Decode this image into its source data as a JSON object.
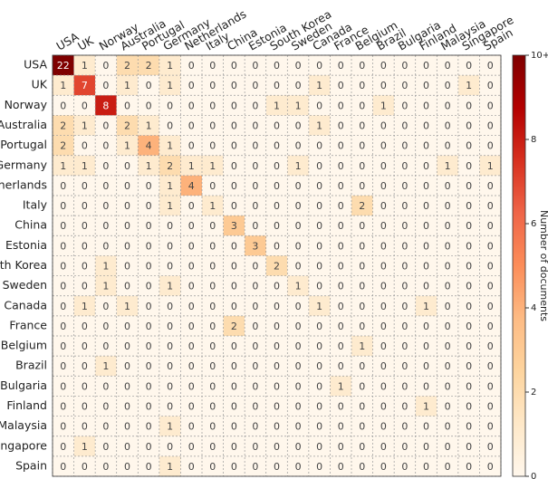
{
  "chart_data": {
    "type": "heatmap",
    "x_categories": [
      "USA",
      "UK",
      "Norway",
      "Australia",
      "Portugal",
      "Germany",
      "Netherlands",
      "Italy",
      "China",
      "Estonia",
      "South Korea",
      "Sweden",
      "Canada",
      "France",
      "Belgium",
      "Brazil",
      "Bulgaria",
      "Finland",
      "Malaysia",
      "Singapore",
      "Spain"
    ],
    "y_categories": [
      "USA",
      "UK",
      "Norway",
      "Australia",
      "Portugal",
      "Germany",
      "Netherlands",
      "Italy",
      "China",
      "Estonia",
      "South Korea",
      "Sweden",
      "Canada",
      "France",
      "Belgium",
      "Brazil",
      "Bulgaria",
      "Finland",
      "Malaysia",
      "Singapore",
      "Spain"
    ],
    "values": [
      [
        22,
        1,
        0,
        2,
        2,
        1,
        0,
        0,
        0,
        0,
        0,
        0,
        0,
        0,
        0,
        0,
        0,
        0,
        0,
        0,
        0
      ],
      [
        1,
        7,
        0,
        1,
        0,
        1,
        0,
        0,
        0,
        0,
        0,
        0,
        1,
        0,
        0,
        0,
        0,
        0,
        0,
        1,
        0
      ],
      [
        0,
        0,
        8,
        0,
        0,
        0,
        0,
        0,
        0,
        0,
        1,
        1,
        0,
        0,
        0,
        1,
        0,
        0,
        0,
        0,
        0
      ],
      [
        2,
        1,
        0,
        2,
        1,
        0,
        0,
        0,
        0,
        0,
        0,
        0,
        1,
        0,
        0,
        0,
        0,
        0,
        0,
        0,
        0
      ],
      [
        2,
        0,
        0,
        1,
        4,
        1,
        0,
        0,
        0,
        0,
        0,
        0,
        0,
        0,
        0,
        0,
        0,
        0,
        0,
        0,
        0
      ],
      [
        1,
        1,
        0,
        0,
        1,
        2,
        1,
        1,
        0,
        0,
        0,
        1,
        0,
        0,
        0,
        0,
        0,
        0,
        1,
        0,
        1
      ],
      [
        0,
        0,
        0,
        0,
        0,
        1,
        4,
        0,
        0,
        0,
        0,
        0,
        0,
        0,
        0,
        0,
        0,
        0,
        0,
        0,
        0
      ],
      [
        0,
        0,
        0,
        0,
        0,
        1,
        0,
        1,
        0,
        0,
        0,
        0,
        0,
        0,
        2,
        0,
        0,
        0,
        0,
        0,
        0
      ],
      [
        0,
        0,
        0,
        0,
        0,
        0,
        0,
        0,
        3,
        0,
        0,
        0,
        0,
        0,
        0,
        0,
        0,
        0,
        0,
        0,
        0
      ],
      [
        0,
        0,
        0,
        0,
        0,
        0,
        0,
        0,
        0,
        3,
        0,
        0,
        0,
        0,
        0,
        0,
        0,
        0,
        0,
        0,
        0
      ],
      [
        0,
        0,
        1,
        0,
        0,
        0,
        0,
        0,
        0,
        0,
        2,
        0,
        0,
        0,
        0,
        0,
        0,
        0,
        0,
        0,
        0
      ],
      [
        0,
        0,
        1,
        0,
        0,
        1,
        0,
        0,
        0,
        0,
        0,
        1,
        0,
        0,
        0,
        0,
        0,
        0,
        0,
        0,
        0
      ],
      [
        0,
        1,
        0,
        1,
        0,
        0,
        0,
        0,
        0,
        0,
        0,
        0,
        1,
        0,
        0,
        0,
        0,
        1,
        0,
        0,
        0
      ],
      [
        0,
        0,
        0,
        0,
        0,
        0,
        0,
        0,
        2,
        0,
        0,
        0,
        0,
        0,
        0,
        0,
        0,
        0,
        0,
        0,
        0
      ],
      [
        0,
        0,
        0,
        0,
        0,
        0,
        0,
        0,
        0,
        0,
        0,
        0,
        0,
        0,
        1,
        0,
        0,
        0,
        0,
        0,
        0
      ],
      [
        0,
        0,
        1,
        0,
        0,
        0,
        0,
        0,
        0,
        0,
        0,
        0,
        0,
        0,
        0,
        0,
        0,
        0,
        0,
        0,
        0
      ],
      [
        0,
        0,
        0,
        0,
        0,
        0,
        0,
        0,
        0,
        0,
        0,
        0,
        0,
        1,
        0,
        0,
        0,
        0,
        0,
        0,
        0
      ],
      [
        0,
        0,
        0,
        0,
        0,
        0,
        0,
        0,
        0,
        0,
        0,
        0,
        0,
        0,
        0,
        0,
        0,
        1,
        0,
        0,
        0
      ],
      [
        0,
        0,
        0,
        0,
        0,
        1,
        0,
        0,
        0,
        0,
        0,
        0,
        0,
        0,
        0,
        0,
        0,
        0,
        0,
        0,
        0
      ],
      [
        0,
        1,
        0,
        0,
        0,
        0,
        0,
        0,
        0,
        0,
        0,
        0,
        0,
        0,
        0,
        0,
        0,
        0,
        0,
        0,
        0
      ],
      [
        0,
        0,
        0,
        0,
        0,
        1,
        0,
        0,
        0,
        0,
        0,
        0,
        0,
        0,
        0,
        0,
        0,
        0,
        0,
        0,
        0
      ]
    ],
    "colormap": [
      "#fff7ec",
      "#fee8c8",
      "#fdd49e",
      "#fdbb84",
      "#fc8d59",
      "#ef6548",
      "#d7301f",
      "#b30000",
      "#7f0000"
    ],
    "clim": [
      0,
      10
    ],
    "cticks": [
      0,
      2,
      4,
      6,
      8,
      {
        "value": 10,
        "label": "10+"
      }
    ],
    "colorbar_label": "Number of documents"
  }
}
